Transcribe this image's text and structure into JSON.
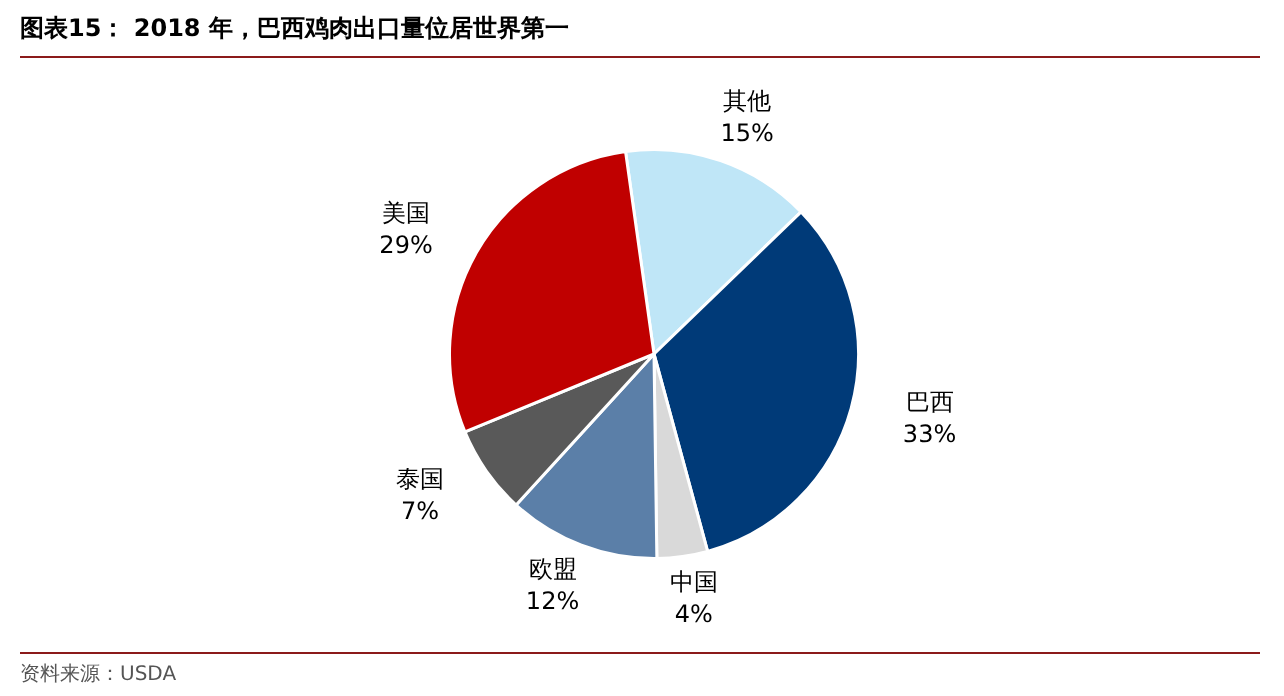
{
  "chart_data": {
    "type": "pie",
    "title": "图表15： 2018 年，巴西鸡肉出口量位居世界第一",
    "categories": [
      "其他",
      "巴西",
      "中国",
      "欧盟",
      "泰国",
      "美国"
    ],
    "values": [
      15,
      33,
      4,
      12,
      7,
      29
    ],
    "value_labels": [
      "15%",
      "33%",
      "4%",
      "12%",
      "7%",
      "29%"
    ],
    "colors": [
      "#bfe6f7",
      "#003a78",
      "#d9d9d9",
      "#5b7fa8",
      "#595959",
      "#c00000"
    ],
    "annotations": [
      "资料来源：USDA"
    ],
    "legend": false
  }
}
